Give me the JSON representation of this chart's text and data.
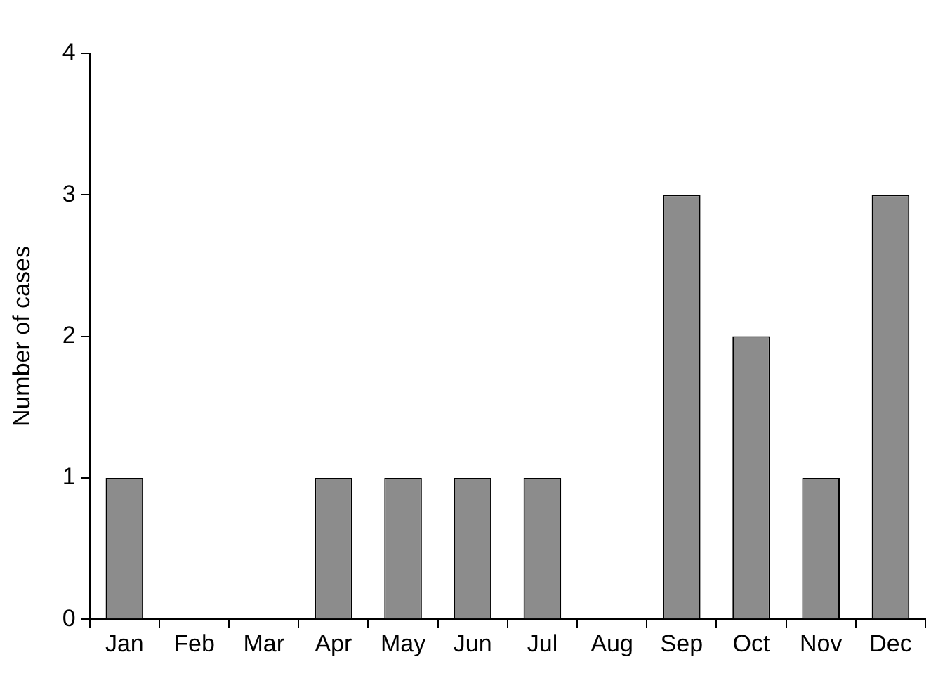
{
  "chart_data": {
    "type": "bar",
    "ylabel": "Number of cases",
    "categories": [
      "Jan",
      "Feb",
      "Mar",
      "Apr",
      "May",
      "Jun",
      "Jul",
      "Aug",
      "Sep",
      "Oct",
      "Nov",
      "Dec"
    ],
    "values": [
      1,
      0,
      0,
      1,
      1,
      1,
      1,
      0,
      3,
      2,
      1,
      3
    ],
    "color": "#8c8c8c",
    "ylim": [
      0,
      4
    ],
    "yticks": [
      0,
      1,
      2,
      3,
      4
    ],
    "grid": false,
    "legend": false
  }
}
